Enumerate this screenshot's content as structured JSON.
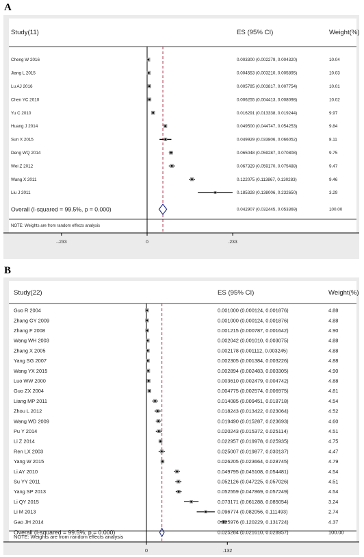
{
  "chart_data": [
    {
      "type": "forest",
      "panel_label": "A",
      "header": {
        "study": "Study(11)",
        "es": "ES (95% CI)",
        "weight": "Weight(%)"
      },
      "studies": [
        {
          "label": "Cheng W 2016",
          "es": 0.0033,
          "lo": 0.002279,
          "hi": 0.00432,
          "ci_text": "0.003300 (0.002279, 0.004320)",
          "weight": "10.04"
        },
        {
          "label": "Jiang L 2015",
          "es": 0.004553,
          "lo": 0.00321,
          "hi": 0.005895,
          "ci_text": "0.004553 (0.003210, 0.005895)",
          "weight": "10.03"
        },
        {
          "label": "Lu AJ 2016",
          "es": 0.005785,
          "lo": 0.003817,
          "hi": 0.007754,
          "ci_text": "0.005785 (0.003817, 0.007754)",
          "weight": "10.01"
        },
        {
          "label": "Chen YC 2010",
          "es": 0.006255,
          "lo": 0.004413,
          "hi": 0.008098,
          "ci_text": "0.006255 (0.004413, 0.008098)",
          "weight": "10.02"
        },
        {
          "label": "Yu C 2010",
          "es": 0.016291,
          "lo": 0.013338,
          "hi": 0.019244,
          "ci_text": "0.016291 (0.013338, 0.019244)",
          "weight": "9.97"
        },
        {
          "label": "Huang J 2014",
          "es": 0.0495,
          "lo": 0.044747,
          "hi": 0.054253,
          "ci_text": "0.049500 (0.044747, 0.054253)",
          "weight": "9.84"
        },
        {
          "label": "Sun X 2015",
          "es": 0.049929,
          "lo": 0.033806,
          "hi": 0.066052,
          "ci_text": "0.049929 (0.033806, 0.066052)",
          "weight": "8.11"
        },
        {
          "label": "Deng WQ 2014",
          "es": 0.065048,
          "lo": 0.059287,
          "hi": 0.070808,
          "ci_text": "0.065048 (0.059287, 0.070808)",
          "weight": "9.75"
        },
        {
          "label": "Wei Z 2012",
          "es": 0.067329,
          "lo": 0.05917,
          "hi": 0.075488,
          "ci_text": "0.067329 (0.059170, 0.075488)",
          "weight": "9.47"
        },
        {
          "label": "Wang X 2011",
          "es": 0.122075,
          "lo": 0.113867,
          "hi": 0.130283,
          "ci_text": "0.122075 (0.113867, 0.130283)",
          "weight": "9.46"
        },
        {
          "label": "Liu J 2011",
          "es": 0.185328,
          "lo": 0.138006,
          "hi": 0.23265,
          "ci_text": "0.185328 (0.138006, 0.232650)",
          "weight": "3.29"
        }
      ],
      "overall": {
        "label": "Overall  (I-squared = 99.5%, p = 0.000)",
        "es": 0.042907,
        "lo": 0.032445,
        "hi": 0.053369,
        "ci_text": "0.042907 (0.032445, 0.053369)",
        "weight": "100.00"
      },
      "note": "NOTE: Weights are from random effects analysis",
      "x_ticks": [
        "-.233",
        "0",
        ".233"
      ],
      "tick_values": [
        -0.233,
        0,
        0.233
      ],
      "xlim": [
        -0.233,
        0.233
      ]
    },
    {
      "type": "forest",
      "panel_label": "B",
      "header": {
        "study": "Study(22)",
        "es": "ES (95% CI)",
        "weight": "Weight(%)"
      },
      "studies": [
        {
          "label": "Guo R 2004",
          "es": 0.001,
          "lo": 0.000124,
          "hi": 0.001876,
          "ci_text": "0.001000 (0.000124, 0.001876)",
          "weight": "4.88"
        },
        {
          "label": "Zhang GY 2009",
          "es": 0.001,
          "lo": 0.000124,
          "hi": 0.001876,
          "ci_text": "0.001000 (0.000124, 0.001876)",
          "weight": "4.88"
        },
        {
          "label": "Zhang F 2008",
          "es": 0.001215,
          "lo": 0.000787,
          "hi": 0.001642,
          "ci_text": "0.001215 (0.000787, 0.001642)",
          "weight": "4.90"
        },
        {
          "label": "Wang WH 2003",
          "es": 0.002042,
          "lo": 0.00101,
          "hi": 0.003075,
          "ci_text": "0.002042 (0.001010, 0.003075)",
          "weight": "4.88"
        },
        {
          "label": "Zhang X 2005",
          "es": 0.002178,
          "lo": 0.001112,
          "hi": 0.003245,
          "ci_text": "0.002178 (0.001112, 0.003245)",
          "weight": "4.88"
        },
        {
          "label": "Yang SG 2007",
          "es": 0.002305,
          "lo": 0.001384,
          "hi": 0.003226,
          "ci_text": "0.002305 (0.001384, 0.003226)",
          "weight": "4.88"
        },
        {
          "label": "Wang YX 2015",
          "es": 0.002894,
          "lo": 0.002483,
          "hi": 0.003305,
          "ci_text": "0.002894 (0.002483, 0.003305)",
          "weight": "4.90"
        },
        {
          "label": "Luo WW 2000",
          "es": 0.00361,
          "lo": 0.002479,
          "hi": 0.004742,
          "ci_text": "0.003610 (0.002479, 0.004742)",
          "weight": "4.88"
        },
        {
          "label": "Guo ZX 2004",
          "es": 0.004775,
          "lo": 0.002574,
          "hi": 0.006975,
          "ci_text": "0.004775 (0.002574, 0.006975)",
          "weight": "4.81"
        },
        {
          "label": "Liang MP 2011",
          "es": 0.014085,
          "lo": 0.009451,
          "hi": 0.018718,
          "ci_text": "0.014085 (0.009451, 0.018718)",
          "weight": "4.54"
        },
        {
          "label": "Zhou L 2012",
          "es": 0.018243,
          "lo": 0.013422,
          "hi": 0.023064,
          "ci_text": "0.018243 (0.013422, 0.023064)",
          "weight": "4.52"
        },
        {
          "label": "Wang WD 2009",
          "es": 0.01949,
          "lo": 0.015287,
          "hi": 0.023693,
          "ci_text": "0.019490 (0.015287, 0.023693)",
          "weight": "4.60"
        },
        {
          "label": "Pu Y 2014",
          "es": 0.020243,
          "lo": 0.015372,
          "hi": 0.025114,
          "ci_text": "0.020243 (0.015372, 0.025114)",
          "weight": "4.51"
        },
        {
          "label": "Li Z 2014",
          "es": 0.022957,
          "lo": 0.019978,
          "hi": 0.025935,
          "ci_text": "0.022957 (0.019978, 0.025935)",
          "weight": "4.75"
        },
        {
          "label": "Ren LX 2003",
          "es": 0.025007,
          "lo": 0.019877,
          "hi": 0.030137,
          "ci_text": "0.025007 (0.019877, 0.030137)",
          "weight": "4.47"
        },
        {
          "label": "Yang W 2015",
          "es": 0.026205,
          "lo": 0.023664,
          "hi": 0.028745,
          "ci_text": "0.026205 (0.023664, 0.028745)",
          "weight": "4.79"
        },
        {
          "label": "Li AY 2010",
          "es": 0.049795,
          "lo": 0.045108,
          "hi": 0.054481,
          "ci_text": "0.049795 (0.045108, 0.054481)",
          "weight": "4.54"
        },
        {
          "label": "Su YY 2011",
          "es": 0.052126,
          "lo": 0.047225,
          "hi": 0.057026,
          "ci_text": "0.052126 (0.047225, 0.057026)",
          "weight": "4.51"
        },
        {
          "label": "Yang SP 2013",
          "es": 0.052559,
          "lo": 0.047869,
          "hi": 0.057249,
          "ci_text": "0.052559 (0.047869, 0.057249)",
          "weight": "4.54"
        },
        {
          "label": "Li QY 2015",
          "es": 0.073171,
          "lo": 0.061288,
          "hi": 0.085054,
          "ci_text": "0.073171 (0.061288, 0.085054)",
          "weight": "3.24"
        },
        {
          "label": "Li M 2013",
          "es": 0.096774,
          "lo": 0.082056,
          "hi": 0.111493,
          "ci_text": "0.096774 (0.082056, 0.111493)",
          "weight": "2.74"
        },
        {
          "label": "Gao JH 2014",
          "es": 0.125976,
          "lo": 0.120229,
          "hi": 0.131724,
          "ci_text": "0.125976 (0.120229, 0.131724)",
          "weight": "4.37"
        }
      ],
      "overall": {
        "label": "Overall  (I-squared = 99.5%, p = 0.000)",
        "es": 0.025284,
        "lo": 0.02161,
        "hi": 0.028957,
        "ci_text": "0.025284 (0.021610, 0.028957)",
        "weight": "100.00"
      },
      "note": "NOTE: Weights are from random effects analysis",
      "x_ticks": [
        "0",
        ".132"
      ],
      "tick_values": [
        0,
        0.132
      ],
      "xlim": [
        -0.132,
        0.132
      ]
    }
  ]
}
